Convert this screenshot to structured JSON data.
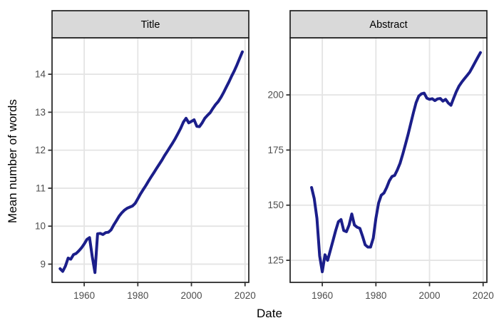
{
  "chart_data": {
    "type": "line",
    "title": "",
    "xlabel": "Date",
    "ylabel": "Mean number of words",
    "legend": "none",
    "grid": "major-only",
    "x_ticks": [
      1960,
      1980,
      2000,
      2020
    ],
    "xlim": [
      1948,
      2021.4
    ],
    "colors": {
      "line": "#1b1e8a",
      "grid": "#e4e4e4",
      "panel_background": "#ffffff",
      "panel_border": "#1f1f1f",
      "strip_fill": "#d9d9d9",
      "strip_border": "#1f1f1f",
      "tick_label": "#4d4d4d",
      "tick_mark": "#333333",
      "axis_title": "#000000"
    },
    "panels": [
      {
        "label": "Title",
        "y_ticks": [
          9,
          10,
          11,
          12,
          13,
          14
        ],
        "ylim": [
          8.52,
          14.96
        ],
        "series": {
          "x": [
            1951,
            1952,
            1953,
            1954,
            1955,
            1956,
            1957,
            1958,
            1959,
            1960,
            1961,
            1962,
            1963,
            1964,
            1965,
            1966,
            1967,
            1968,
            1969,
            1970,
            1971,
            1972,
            1973,
            1974,
            1975,
            1976,
            1977,
            1978,
            1979,
            1980,
            1981,
            1982,
            1983,
            1984,
            1985,
            1986,
            1987,
            1988,
            1989,
            1990,
            1991,
            1992,
            1993,
            1994,
            1995,
            1996,
            1997,
            1998,
            1999,
            2000,
            2001,
            2002,
            2003,
            2004,
            2005,
            2006,
            2007,
            2008,
            2009,
            2010,
            2011,
            2012,
            2013,
            2014,
            2015,
            2016,
            2017,
            2018,
            2019
          ],
          "y": [
            8.88,
            8.81,
            8.95,
            9.16,
            9.13,
            9.25,
            9.28,
            9.35,
            9.43,
            9.53,
            9.65,
            9.7,
            9.2,
            8.78,
            9.8,
            9.81,
            9.78,
            9.83,
            9.84,
            9.9,
            10.03,
            10.14,
            10.26,
            10.35,
            10.42,
            10.47,
            10.5,
            10.53,
            10.6,
            10.72,
            10.85,
            10.96,
            11.07,
            11.19,
            11.3,
            11.41,
            11.52,
            11.63,
            11.74,
            11.86,
            11.97,
            12.08,
            12.19,
            12.31,
            12.44,
            12.58,
            12.74,
            12.84,
            12.72,
            12.76,
            12.8,
            12.63,
            12.62,
            12.72,
            12.84,
            12.92,
            12.99,
            13.1,
            13.2,
            13.28,
            13.39,
            13.52,
            13.66,
            13.8,
            13.95,
            14.09,
            14.25,
            14.42,
            14.59
          ]
        }
      },
      {
        "label": "Abstract",
        "y_ticks": [
          125,
          150,
          175,
          200
        ],
        "ylim": [
          115,
          225.9
        ],
        "series": {
          "x": [
            1956,
            1957,
            1958,
            1959,
            1960,
            1961,
            1962,
            1963,
            1964,
            1965,
            1966,
            1967,
            1968,
            1969,
            1970,
            1971,
            1972,
            1973,
            1974,
            1975,
            1976,
            1977,
            1978,
            1979,
            1980,
            1981,
            1982,
            1983,
            1984,
            1985,
            1986,
            1987,
            1988,
            1989,
            1990,
            1991,
            1992,
            1993,
            1994,
            1995,
            1996,
            1997,
            1998,
            1999,
            2000,
            2001,
            2002,
            2003,
            2004,
            2005,
            2006,
            2007,
            2008,
            2009,
            2010,
            2011,
            2012,
            2013,
            2014,
            2015,
            2016,
            2017,
            2018,
            2019
          ],
          "y": [
            158,
            153,
            144,
            127,
            119.8,
            127.5,
            125,
            129.5,
            134,
            138.5,
            142.5,
            143.5,
            138.5,
            138,
            141,
            146,
            141,
            140,
            139.5,
            136,
            132,
            131,
            131,
            135,
            144,
            151,
            154.5,
            155.5,
            158,
            161,
            163,
            163.5,
            166,
            169,
            173,
            177.5,
            182,
            187,
            192,
            196.5,
            199.5,
            200.5,
            200.8,
            198.5,
            198,
            198.3,
            197.4,
            198.2,
            198.4,
            197.2,
            198,
            196.3,
            195.3,
            198.5,
            201.5,
            204,
            205.8,
            207.3,
            208.8,
            210.3,
            212.5,
            214.8,
            217,
            219.2
          ]
        }
      }
    ]
  }
}
